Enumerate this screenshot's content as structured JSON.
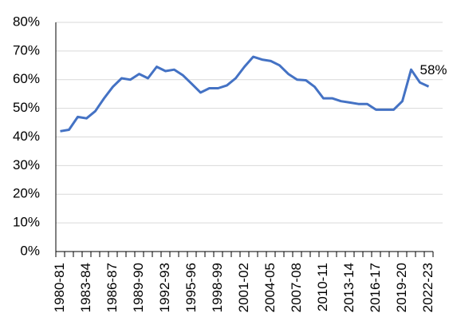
{
  "chart_data": {
    "type": "line",
    "categories": [
      "1980-81",
      null,
      null,
      "1983-84",
      null,
      null,
      "1986-87",
      null,
      null,
      "1989-90",
      null,
      null,
      "1992-93",
      null,
      null,
      "1995-96",
      null,
      null,
      "1998-99",
      null,
      null,
      "2001-02",
      null,
      null,
      "2004-05",
      null,
      null,
      "2007-08",
      null,
      null,
      "2010-11",
      null,
      null,
      "2013-14",
      null,
      null,
      "2016-17",
      null,
      null,
      "2019-20",
      null,
      null,
      "2022-23"
    ],
    "values": [
      42,
      42.5,
      47,
      46.5,
      49,
      53.5,
      57.5,
      60.5,
      60,
      62,
      60.5,
      64.5,
      63,
      63.5,
      61.5,
      58.5,
      55.5,
      57,
      57,
      58,
      60.5,
      64.5,
      68,
      67,
      66.5,
      65,
      62,
      60,
      59.8,
      57.5,
      53.5,
      53.5,
      52.5,
      52,
      51.5,
      51.5,
      49.5,
      49.5,
      49.5,
      52.5,
      63.5,
      59,
      57.6
    ],
    "value_labels": [
      null,
      null,
      null,
      null,
      null,
      null,
      null,
      null,
      null,
      null,
      null,
      null,
      null,
      null,
      null,
      null,
      null,
      null,
      null,
      null,
      null,
      null,
      null,
      null,
      null,
      null,
      null,
      null,
      null,
      null,
      null,
      null,
      null,
      null,
      null,
      null,
      null,
      null,
      null,
      null,
      null,
      null,
      "58%"
    ],
    "color": "#4472c4",
    "ylim": [
      0,
      80
    ],
    "yticks": [
      {
        "value": 0,
        "label": "0%"
      },
      {
        "value": 10,
        "label": "10%"
      },
      {
        "value": 20,
        "label": "20%"
      },
      {
        "value": 30,
        "label": "30%"
      },
      {
        "value": 40,
        "label": "40%"
      },
      {
        "value": 50,
        "label": "50%"
      },
      {
        "value": 60,
        "label": "60%"
      },
      {
        "value": 70,
        "label": "70%"
      },
      {
        "value": 80,
        "label": "80%"
      }
    ],
    "grid": true
  }
}
